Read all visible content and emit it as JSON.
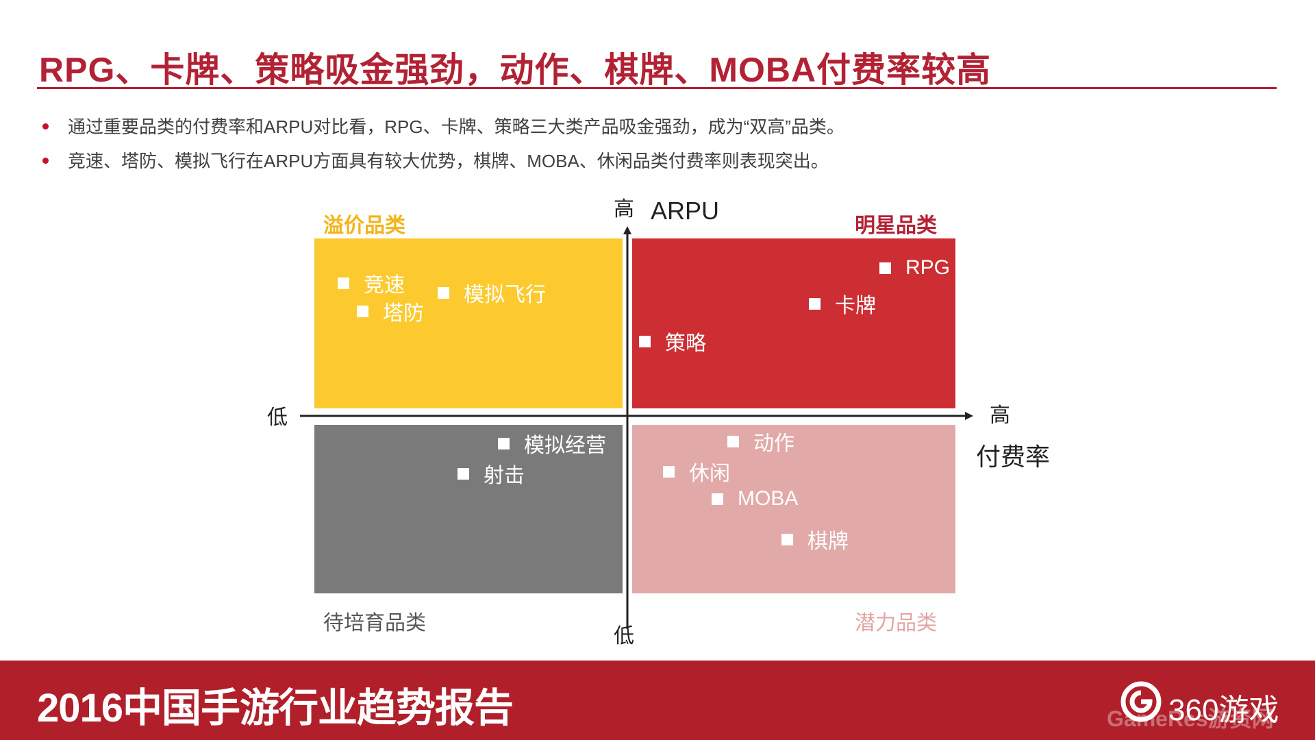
{
  "header": {
    "title": "RPG、卡牌、策略吸金强劲，动作、棋牌、MOBA付费率较高"
  },
  "bullets": [
    "通过重要品类的付费率和ARPU对比看，RPG、卡牌、策略三大类产品吸金强劲，成为“双高”品类。",
    "竞速、塔防、模拟飞行在ARPU方面具有较大优势，棋牌、MOBA、休闲品类付费率则表现突出。"
  ],
  "chart_data": {
    "type": "scatter",
    "x_axis": {
      "label": "付费率",
      "low_label": "低",
      "high_label": "高"
    },
    "y_axis": {
      "label": "ARPU",
      "low_label": "低",
      "high_label": "高"
    },
    "quadrants": [
      {
        "name": "溢价品类",
        "position": "top-left",
        "color": "#fcca2f",
        "label_color": "#f2b418",
        "items": [
          "竞速",
          "塔防",
          "模拟飞行"
        ]
      },
      {
        "name": "明星品类",
        "position": "top-right",
        "color": "#cc2e33",
        "label_color": "#b22234",
        "items": [
          "RPG",
          "卡牌",
          "策略"
        ]
      },
      {
        "name": "待培育品类",
        "position": "bottom-left",
        "color": "#7a7a7a",
        "label_color": "#555555",
        "items": [
          "模拟经营",
          "射击"
        ]
      },
      {
        "name": "潜力品类",
        "position": "bottom-right",
        "color": "#e2a9a9",
        "label_color": "#e2a4a4",
        "items": [
          "动作",
          "休闲",
          "MOBA",
          "棋牌"
        ]
      }
    ]
  },
  "footer": {
    "report_title": "2016中国手游行业趋势报告",
    "logo_text": "360游戏",
    "logo_icon": "360-logo-icon",
    "watermark": "GameRes游资网"
  },
  "colors": {
    "accent": "#b22234",
    "footer_bg": "#b01f2a"
  }
}
